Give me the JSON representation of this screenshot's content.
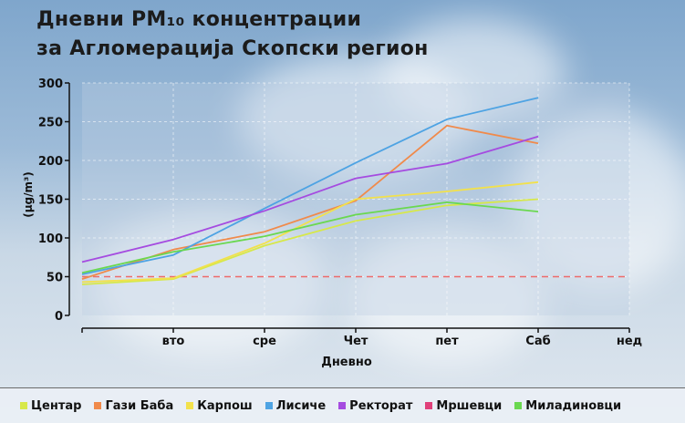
{
  "title_line1": "Дневни PM₁₀ концентрации",
  "title_line2": "за Агломерација Скопски регион",
  "chart_data": {
    "type": "line",
    "xlabel": "Дневно",
    "ylabel": "(µg/m³)",
    "categories": [
      "",
      "вто",
      "сре",
      "Чет",
      "пет",
      "Саб",
      "нед"
    ],
    "ylim": [
      0,
      300
    ],
    "yticks": [
      0,
      50,
      100,
      150,
      200,
      250,
      300
    ],
    "limit_line": 50,
    "grid": true,
    "legend_position": "bottom",
    "series": [
      {
        "name": "Центар",
        "color": "#d7e84a",
        "values": [
          40,
          47,
          90,
          122,
          142,
          150,
          null
        ]
      },
      {
        "name": "Гази Баба",
        "color": "#f08a4b",
        "values": [
          47,
          85,
          108,
          148,
          245,
          222,
          null
        ]
      },
      {
        "name": "Карпош",
        "color": "#f2e14c",
        "values": [
          43,
          48,
          93,
          150,
          160,
          172,
          null
        ]
      },
      {
        "name": "Лисиче",
        "color": "#4ea3e3",
        "values": [
          53,
          78,
          138,
          197,
          253,
          281,
          null
        ]
      },
      {
        "name": "Ректорат",
        "color": "#a54be0",
        "values": [
          69,
          98,
          135,
          177,
          196,
          231,
          null
        ]
      },
      {
        "name": "Мршевци",
        "color": "#e0407a",
        "values": [
          null,
          null,
          null,
          null,
          null,
          null,
          null
        ]
      },
      {
        "name": "Миладиновци",
        "color": "#6ad850",
        "values": [
          55,
          82,
          102,
          130,
          146,
          134,
          null
        ]
      }
    ]
  }
}
